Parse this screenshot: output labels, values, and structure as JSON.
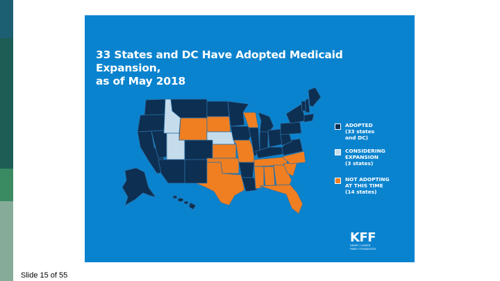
{
  "slide": {
    "counter": "Slide 15 of 55"
  },
  "colors": {
    "background": "#0a83cf",
    "adopted": "#0d2f52",
    "considering": "#c5dcec",
    "not_adopting": "#f07f22",
    "outline": "#2a6fa3"
  },
  "map": {
    "title_line1": "33 States and DC Have Adopted Medicaid Expansion,",
    "title_line2": "as of May 2018",
    "legend": [
      {
        "status": "adopted",
        "lines": [
          "ADOPTED",
          "(33 states",
          "and DC)"
        ]
      },
      {
        "status": "considering",
        "lines": [
          "CONSIDERING",
          "EXPANSION",
          "(3 states)"
        ]
      },
      {
        "status": "not_adopting",
        "lines": [
          "NOT ADOPTING",
          "AT THIS TIME",
          "(14 states)"
        ]
      }
    ],
    "states": [
      {
        "name": "Washington",
        "status": "adopted"
      },
      {
        "name": "Oregon",
        "status": "adopted"
      },
      {
        "name": "California",
        "status": "adopted"
      },
      {
        "name": "Nevada",
        "status": "adopted"
      },
      {
        "name": "Idaho",
        "status": "considering"
      },
      {
        "name": "Utah",
        "status": "considering"
      },
      {
        "name": "Arizona",
        "status": "adopted"
      },
      {
        "name": "Montana",
        "status": "adopted"
      },
      {
        "name": "Wyoming",
        "status": "not_adopting"
      },
      {
        "name": "Colorado",
        "status": "adopted"
      },
      {
        "name": "New Mexico",
        "status": "adopted"
      },
      {
        "name": "North Dakota",
        "status": "adopted"
      },
      {
        "name": "South Dakota",
        "status": "not_adopting"
      },
      {
        "name": "Nebraska",
        "status": "considering"
      },
      {
        "name": "Kansas",
        "status": "not_adopting"
      },
      {
        "name": "Oklahoma",
        "status": "not_adopting"
      },
      {
        "name": "Texas",
        "status": "not_adopting"
      },
      {
        "name": "Minnesota",
        "status": "adopted"
      },
      {
        "name": "Iowa",
        "status": "adopted"
      },
      {
        "name": "Missouri",
        "status": "not_adopting"
      },
      {
        "name": "Arkansas",
        "status": "adopted"
      },
      {
        "name": "Louisiana",
        "status": "adopted"
      },
      {
        "name": "Wisconsin",
        "status": "not_adopting"
      },
      {
        "name": "Illinois",
        "status": "adopted"
      },
      {
        "name": "Michigan",
        "status": "adopted"
      },
      {
        "name": "Indiana",
        "status": "adopted"
      },
      {
        "name": "Ohio",
        "status": "adopted"
      },
      {
        "name": "Kentucky",
        "status": "adopted"
      },
      {
        "name": "Tennessee",
        "status": "not_adopting"
      },
      {
        "name": "Mississippi",
        "status": "not_adopting"
      },
      {
        "name": "Alabama",
        "status": "not_adopting"
      },
      {
        "name": "Georgia",
        "status": "not_adopting"
      },
      {
        "name": "Florida",
        "status": "not_adopting"
      },
      {
        "name": "South Carolina",
        "status": "not_adopting"
      },
      {
        "name": "North Carolina",
        "status": "not_adopting"
      },
      {
        "name": "Virginia",
        "status": "adopted"
      },
      {
        "name": "West Virginia",
        "status": "adopted"
      },
      {
        "name": "Pennsylvania",
        "status": "adopted"
      },
      {
        "name": "New York",
        "status": "adopted"
      },
      {
        "name": "Vermont",
        "status": "adopted"
      },
      {
        "name": "New Hampshire",
        "status": "adopted"
      },
      {
        "name": "Maine",
        "status": "adopted"
      },
      {
        "name": "Alaska",
        "status": "adopted"
      },
      {
        "name": "Hawaii",
        "status": "adopted"
      }
    ]
  },
  "logo": {
    "mark": "KFF",
    "sub_lines": [
      "HENRY J KAISER",
      "FAMILY FOUNDATION"
    ]
  }
}
